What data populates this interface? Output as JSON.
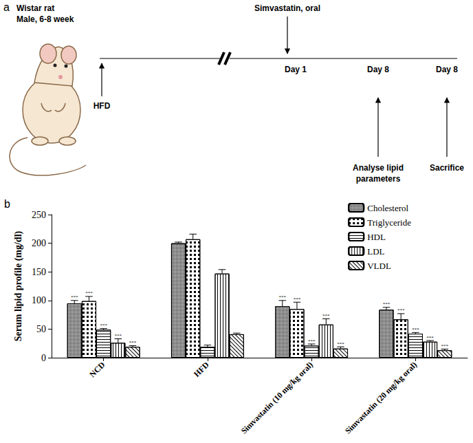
{
  "diagram": {
    "label": "a",
    "animal": [
      "Wistar rat",
      "Male, 6-8 week"
    ],
    "diet": "HFD",
    "treatment": "Simvastatin, oral",
    "days": [
      "Day 1",
      "Day 8",
      "Day 8"
    ],
    "events": [
      "Analyse lipid parameters",
      "Sacrifice"
    ]
  },
  "chart_label": "b",
  "chart_data": {
    "type": "bar",
    "categories": [
      "NCD",
      "HFD",
      "Simvastatin (10 mg/kg oral)",
      "Simvastatin (20 mg/kg oral)"
    ],
    "series": [
      {
        "name": "Cholesterol",
        "color": "#000000",
        "values": [
          95,
          200,
          90,
          84
        ],
        "errors": [
          5,
          2,
          10,
          4
        ],
        "significance": [
          "***",
          null,
          "***",
          "***"
        ]
      },
      {
        "name": "Triglyceride",
        "color": "#000000",
        "values": [
          99,
          207,
          85,
          67
        ],
        "errors": [
          8,
          9,
          12,
          10
        ],
        "significance": [
          "***",
          null,
          "***",
          "***"
        ]
      },
      {
        "name": "HDL",
        "color": "#000000",
        "values": [
          49,
          19,
          21,
          42
        ],
        "errors": [
          2,
          3,
          3,
          2
        ],
        "significance": [
          "***",
          null,
          "***",
          "***"
        ]
      },
      {
        "name": "LDL",
        "color": "#000000",
        "values": [
          26,
          147,
          58,
          28
        ],
        "errors": [
          7,
          7,
          10,
          2
        ],
        "significance": [
          "***",
          null,
          "***",
          "***"
        ]
      },
      {
        "name": "VLDL",
        "color": "#000000",
        "values": [
          19,
          41,
          16,
          13
        ],
        "errors": [
          2,
          2,
          3,
          2
        ],
        "significance": [
          "***",
          null,
          "***",
          "***"
        ]
      }
    ],
    "ylabel": "Serum lipid profile (mg/dl)",
    "ylim": [
      0,
      250
    ],
    "yticks": [
      0,
      50,
      100,
      150,
      200,
      250
    ],
    "legend": "upper right",
    "grid": false
  }
}
